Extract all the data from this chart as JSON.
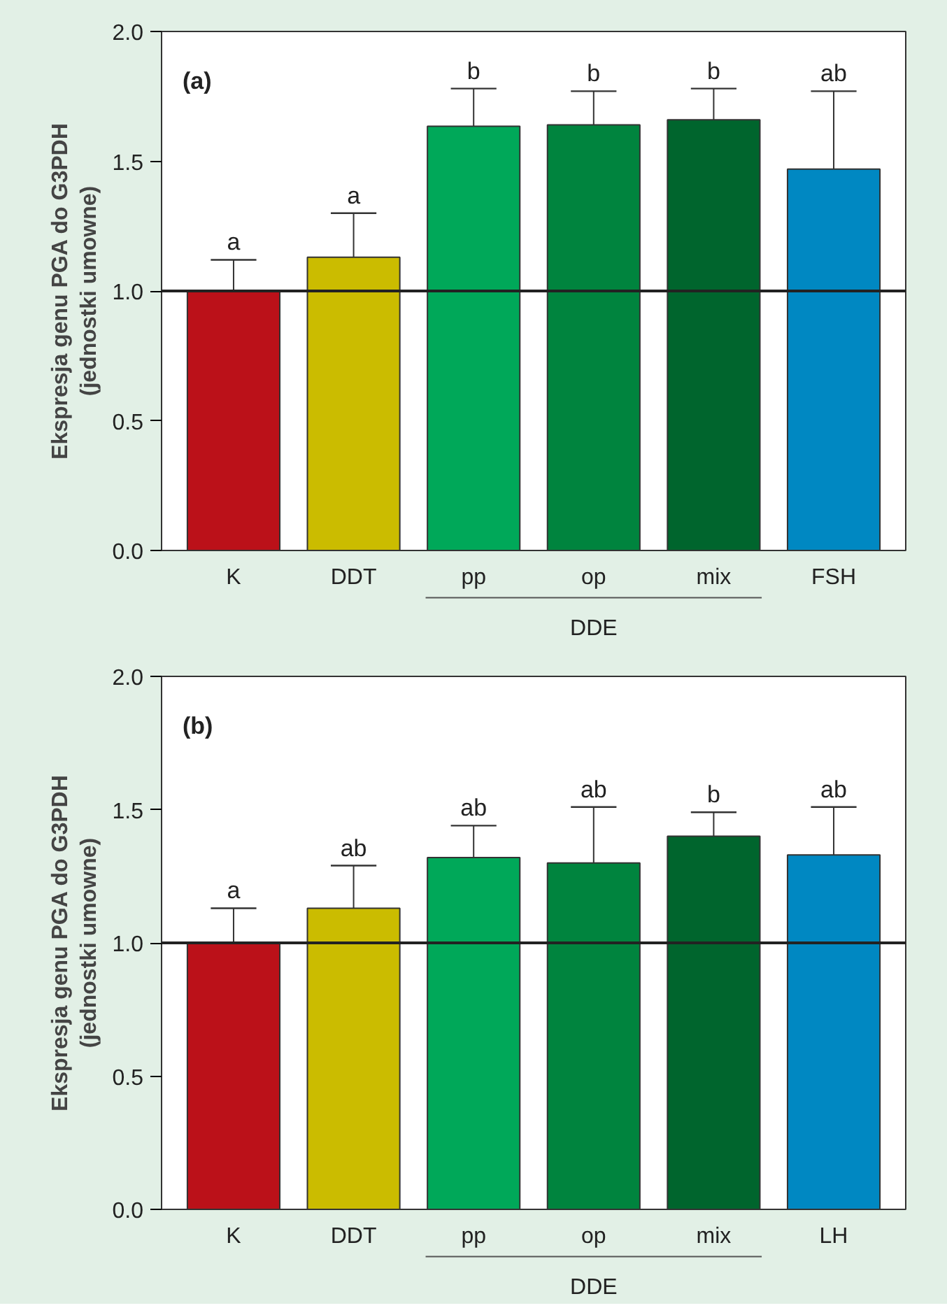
{
  "chart_data": [
    {
      "type": "bar",
      "ylabel": "Ekspresja genu PGA do G3PDH\n(jednostki umowne)",
      "categories": [
        "K",
        "DDT",
        "pp",
        "op",
        "mix",
        "FSH"
      ],
      "values": [
        1.0,
        1.13,
        1.635,
        1.64,
        1.66,
        1.47
      ],
      "colors": [
        "#bb1119",
        "#cbbc00",
        "#00a859",
        "#00843e",
        "#00652d",
        "#0088c2"
      ],
      "errors": [
        [
          1.0,
          1.12
        ],
        [
          1.13,
          1.3
        ],
        [
          1.635,
          1.78
        ],
        [
          1.64,
          1.77
        ],
        [
          1.66,
          1.78
        ],
        [
          1.47,
          1.77
        ]
      ],
      "ylim": [
        0,
        2
      ],
      "yticks": [
        {
          "value": 0,
          "label": "0.0"
        },
        {
          "value": 0.5,
          "label": "0.5"
        },
        {
          "value": 1,
          "label": "1.0"
        },
        {
          "value": 1.5,
          "label": "1.5"
        },
        {
          "value": 2,
          "label": "2.0"
        }
      ],
      "ref_lines": [
        {
          "axis": "y",
          "value": 1
        }
      ],
      "grid": false,
      "annotations": [
        "(a)",
        "DDE",
        {
          "text": "a",
          "x": "K",
          "y": 1.12
        },
        {
          "text": "a",
          "x": "DDT",
          "y": 1.3
        },
        {
          "text": "b",
          "x": "pp",
          "y": 1.78
        },
        {
          "text": "b",
          "x": "op",
          "y": 1.77
        },
        {
          "text": "b",
          "x": "mix",
          "y": 1.78
        },
        {
          "text": "ab",
          "x": "FSH",
          "y": 1.77
        }
      ]
    },
    {
      "type": "bar",
      "ylabel": "Ekspresja genu PGA do G3PDH\n(jednostki umowne)",
      "categories": [
        "K",
        "DDT",
        "pp",
        "op",
        "mix",
        "LH"
      ],
      "values": [
        1.0,
        1.13,
        1.32,
        1.3,
        1.4,
        1.33
      ],
      "colors": [
        "#bb1119",
        "#cbbc00",
        "#00a859",
        "#00843e",
        "#00652d",
        "#0088c2"
      ],
      "errors": [
        [
          1.0,
          1.13
        ],
        [
          1.13,
          1.29
        ],
        [
          1.32,
          1.44
        ],
        [
          1.3,
          1.51
        ],
        [
          1.4,
          1.49
        ],
        [
          1.33,
          1.51
        ]
      ],
      "ylim": [
        0,
        2
      ],
      "yticks": [
        {
          "value": 0,
          "label": "0.0"
        },
        {
          "value": 0.5,
          "label": "0.5"
        },
        {
          "value": 1,
          "label": "1.0"
        },
        {
          "value": 1.5,
          "label": "1.5"
        },
        {
          "value": 2,
          "label": "2.0"
        }
      ],
      "ref_lines": [
        {
          "axis": "y",
          "value": 1
        }
      ],
      "grid": false,
      "annotations": [
        "(b)",
        "DDE",
        {
          "text": "a",
          "x": "K",
          "y": 1.13
        },
        {
          "text": "ab",
          "x": "DDT",
          "y": 1.29
        },
        {
          "text": "ab",
          "x": "pp",
          "y": 1.44
        },
        {
          "text": "ab",
          "x": "op",
          "y": 1.51
        },
        {
          "text": "b",
          "x": "mix",
          "y": 1.49
        },
        {
          "text": "ab",
          "x": "LH",
          "y": 1.51
        }
      ]
    }
  ]
}
